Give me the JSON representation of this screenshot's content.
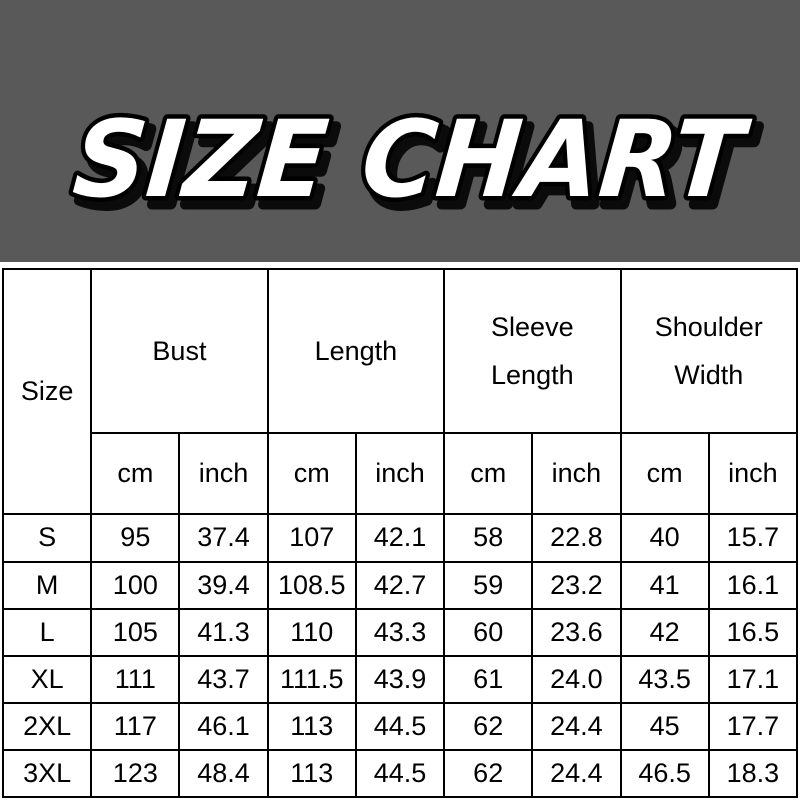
{
  "title": "SIZE CHART",
  "colors": {
    "banner_bg": "#595959",
    "title_fill": "#ffffff",
    "title_outline": "#000000",
    "table_border": "#000000",
    "table_bg": "#ffffff",
    "text": "#000000"
  },
  "table": {
    "corner_label": "Size",
    "groups": [
      {
        "line1": "Bust",
        "line2": ""
      },
      {
        "line1": "Length",
        "line2": ""
      },
      {
        "line1": "Sleeve",
        "line2": "Length"
      },
      {
        "line1": "Shoulder",
        "line2": "Width"
      }
    ],
    "units": [
      "cm",
      "inch",
      "cm",
      "inch",
      "cm",
      "inch",
      "cm",
      "inch"
    ],
    "rows": [
      {
        "size": "S",
        "cells": [
          "95",
          "37.4",
          "107",
          "42.1",
          "58",
          "22.8",
          "40",
          "15.7"
        ]
      },
      {
        "size": "M",
        "cells": [
          "100",
          "39.4",
          "108.5",
          "42.7",
          "59",
          "23.2",
          "41",
          "16.1"
        ]
      },
      {
        "size": "L",
        "cells": [
          "105",
          "41.3",
          "110",
          "43.3",
          "60",
          "23.6",
          "42",
          "16.5"
        ]
      },
      {
        "size": "XL",
        "cells": [
          "111",
          "43.7",
          "111.5",
          "43.9",
          "61",
          "24.0",
          "43.5",
          "17.1"
        ]
      },
      {
        "size": "2XL",
        "cells": [
          "117",
          "46.1",
          "113",
          "44.5",
          "62",
          "24.4",
          "45",
          "17.7"
        ]
      },
      {
        "size": "3XL",
        "cells": [
          "123",
          "48.4",
          "113",
          "44.5",
          "62",
          "24.4",
          "46.5",
          "18.3"
        ]
      }
    ]
  }
}
